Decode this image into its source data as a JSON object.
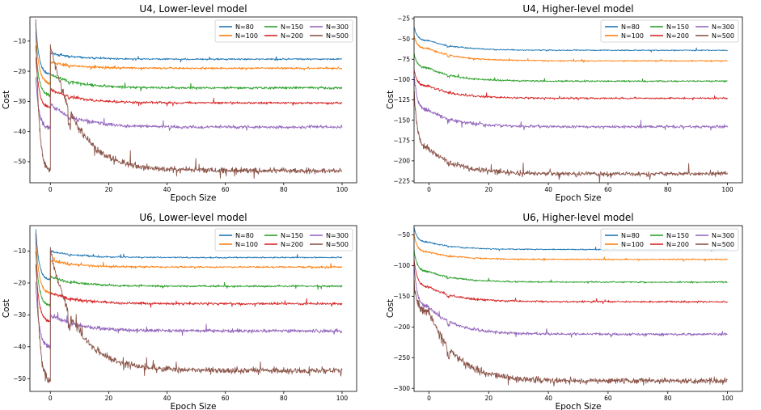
{
  "chart_data": [
    {
      "type": "line",
      "title": "U4, Lower-level model",
      "xlabel": "Epoch Size",
      "ylabel": "Cost",
      "xlim": [
        -7,
        105
      ],
      "ylim": [
        -57,
        -2
      ],
      "xticks": [
        0,
        20,
        40,
        60,
        80,
        100
      ],
      "yticks": [
        -50,
        -40,
        -30,
        -20,
        -10
      ],
      "legend": "top-right",
      "grid": false,
      "series": [
        {
          "name": "N=80",
          "color": "#1f77b4",
          "start": -4,
          "warm_end": -21,
          "peak": -14,
          "plateau": -16,
          "noise": 0.25
        },
        {
          "name": "N=100",
          "color": "#ff7f0e",
          "start": -7,
          "warm_end": -24,
          "peak": -17,
          "plateau": -19,
          "noise": 0.3
        },
        {
          "name": "N=150",
          "color": "#2ca02c",
          "start": -12,
          "warm_end": -28,
          "peak": -21,
          "plateau": -25.5,
          "noise": 0.35
        },
        {
          "name": "N=200",
          "color": "#d62728",
          "start": -15,
          "warm_end": -32,
          "peak": -26,
          "plateau": -30.5,
          "noise": 0.35
        },
        {
          "name": "N=300",
          "color": "#9467bd",
          "start": -22,
          "warm_end": -39,
          "peak": -31,
          "plateau": -38.5,
          "noise": 0.5
        },
        {
          "name": "N=500",
          "color": "#8c564b",
          "start": -4,
          "warm_end": -53,
          "peak": -11,
          "plateau": -53,
          "noise": 0.9
        }
      ]
    },
    {
      "type": "line",
      "title": "U4, Higher-level model",
      "xlabel": "Epoch Size",
      "ylabel": "Cost",
      "xlim": [
        -5,
        105
      ],
      "ylim": [
        -227,
        -23
      ],
      "xticks": [
        0,
        20,
        40,
        60,
        80,
        100
      ],
      "yticks": [
        -225,
        -200,
        -175,
        -150,
        -125,
        -100,
        -75,
        -50,
        -25
      ],
      "legend": "top-right",
      "grid": false,
      "series": [
        {
          "name": "N=80",
          "color": "#1f77b4",
          "start": -35,
          "warm_end": -52,
          "peak": -52,
          "plateau": -64,
          "noise": 0.6
        },
        {
          "name": "N=100",
          "color": "#ff7f0e",
          "start": -46,
          "warm_end": -62,
          "peak": -62,
          "plateau": -77,
          "noise": 0.7
        },
        {
          "name": "N=150",
          "color": "#2ca02c",
          "start": -68,
          "warm_end": -86,
          "peak": -86,
          "plateau": -102,
          "noise": 0.9
        },
        {
          "name": "N=200",
          "color": "#d62728",
          "start": -88,
          "warm_end": -108,
          "peak": -108,
          "plateau": -123,
          "noise": 1.0
        },
        {
          "name": "N=300",
          "color": "#9467bd",
          "start": -95,
          "warm_end": -138,
          "peak": -138,
          "plateau": -158,
          "noise": 1.6
        },
        {
          "name": "N=500",
          "color": "#8c564b",
          "start": -113,
          "warm_end": -185,
          "peak": -185,
          "plateau": -216,
          "noise": 2.5
        }
      ]
    },
    {
      "type": "line",
      "title": "U6, Lower-level model",
      "xlabel": "Epoch Size",
      "ylabel": "Cost",
      "xlim": [
        -7,
        105
      ],
      "ylim": [
        -54,
        -2
      ],
      "xticks": [
        0,
        20,
        40,
        60,
        80,
        100
      ],
      "yticks": [
        -50,
        -40,
        -30,
        -20,
        -10
      ],
      "legend": "top-right",
      "grid": false,
      "series": [
        {
          "name": "N=80",
          "color": "#1f77b4",
          "start": -3,
          "warm_end": -19,
          "peak": -10,
          "plateau": -12,
          "noise": 0.2
        },
        {
          "name": "N=100",
          "color": "#ff7f0e",
          "start": -6,
          "warm_end": -23,
          "peak": -13,
          "plateau": -15,
          "noise": 0.25
        },
        {
          "name": "N=150",
          "color": "#2ca02c",
          "start": -10,
          "warm_end": -27,
          "peak": -18,
          "plateau": -21,
          "noise": 0.3
        },
        {
          "name": "N=200",
          "color": "#d62728",
          "start": -14,
          "warm_end": -32,
          "peak": -23,
          "plateau": -26.5,
          "noise": 0.35
        },
        {
          "name": "N=300",
          "color": "#9467bd",
          "start": -20,
          "warm_end": -40,
          "peak": -30,
          "plateau": -35,
          "noise": 0.5
        },
        {
          "name": "N=500",
          "color": "#8c564b",
          "start": -4,
          "warm_end": -51,
          "peak": -10,
          "plateau": -47.5,
          "noise": 0.9
        }
      ]
    },
    {
      "type": "line",
      "title": "U6, Higher-level model",
      "xlabel": "Epoch Size",
      "ylabel": "Cost",
      "xlim": [
        -5,
        105
      ],
      "ylim": [
        -305,
        -35
      ],
      "xticks": [
        0,
        20,
        40,
        60,
        80,
        100
      ],
      "yticks": [
        -300,
        -250,
        -200,
        -150,
        -100,
        -50
      ],
      "legend": "top-right",
      "grid": false,
      "series": [
        {
          "name": "N=80",
          "color": "#1f77b4",
          "start": -38,
          "warm_end": -62,
          "peak": -62,
          "plateau": -74,
          "noise": 0.8
        },
        {
          "name": "N=100",
          "color": "#ff7f0e",
          "start": -50,
          "warm_end": -78,
          "peak": -78,
          "plateau": -90,
          "noise": 0.9
        },
        {
          "name": "N=150",
          "color": "#2ca02c",
          "start": -75,
          "warm_end": -110,
          "peak": -110,
          "plateau": -127,
          "noise": 1.1
        },
        {
          "name": "N=200",
          "color": "#d62728",
          "start": -90,
          "warm_end": -135,
          "peak": -135,
          "plateau": -159,
          "noise": 1.3
        },
        {
          "name": "N=300",
          "color": "#9467bd",
          "start": -100,
          "warm_end": -168,
          "peak": -168,
          "plateau": -212,
          "noise": 2.0
        },
        {
          "name": "N=500",
          "color": "#8c564b",
          "start": -130,
          "warm_end": -175,
          "peak": -175,
          "plateau": -288,
          "noise": 4.5
        }
      ]
    }
  ]
}
